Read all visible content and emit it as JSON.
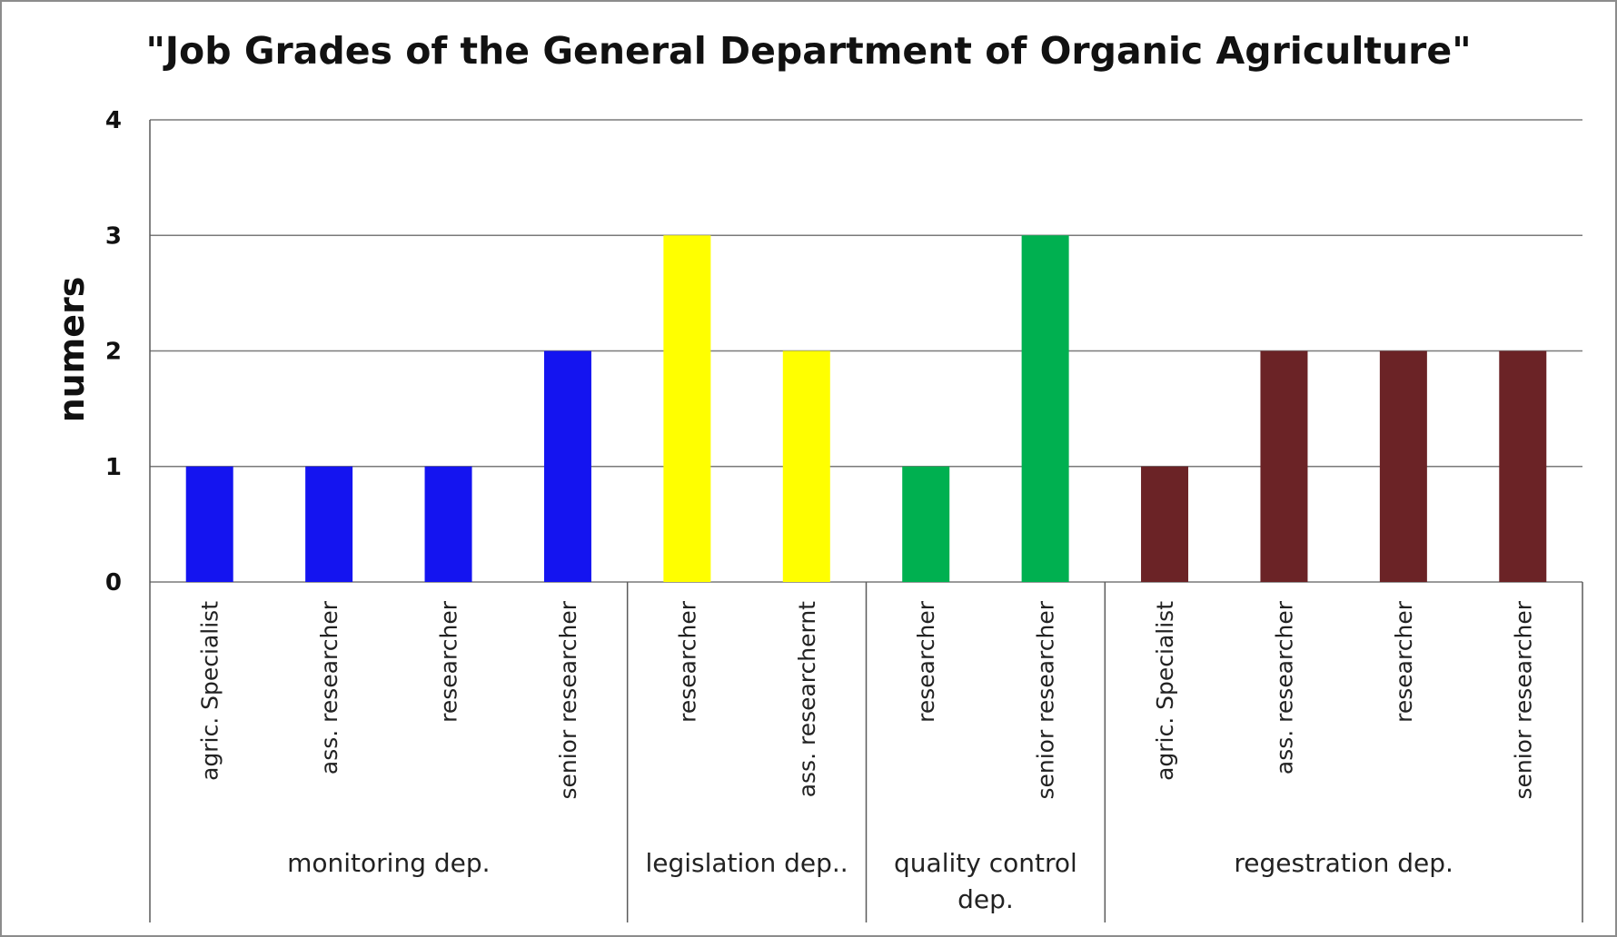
{
  "chart_data": {
    "type": "bar",
    "title": "\"Job Grades of the General Department of Organic Agriculture\"",
    "xlabel": "",
    "ylabel": "numers",
    "ylim": [
      0,
      4
    ],
    "yticks": [
      0,
      1,
      2,
      3,
      4
    ],
    "grid": true,
    "legend": "none",
    "groups": [
      {
        "name": "monitoring dep.",
        "label_lines": [
          "monitoring dep."
        ],
        "color": "#1414f0",
        "categories": [
          "agric. Specialist",
          "ass. researcher",
          "researcher",
          "senior  researcher"
        ],
        "values": [
          1,
          1,
          1,
          2
        ]
      },
      {
        "name": "legislation dep..",
        "label_lines": [
          "legislation dep.."
        ],
        "color": "#ffff00",
        "categories": [
          "researcher",
          "ass.  researchernt"
        ],
        "values": [
          3,
          2
        ]
      },
      {
        "name": "quality control dep.",
        "label_lines": [
          "quality control",
          "dep."
        ],
        "color": "#00b050",
        "categories": [
          "researcher",
          "senior researcher"
        ],
        "values": [
          1,
          3
        ]
      },
      {
        "name": "regestration dep.",
        "label_lines": [
          "regestration dep."
        ],
        "color": "#6b2326",
        "categories": [
          "agric. Specialist",
          "ass.  researcher",
          "researcher",
          "senior researcher"
        ],
        "values": [
          1,
          2,
          2,
          2
        ]
      }
    ]
  }
}
